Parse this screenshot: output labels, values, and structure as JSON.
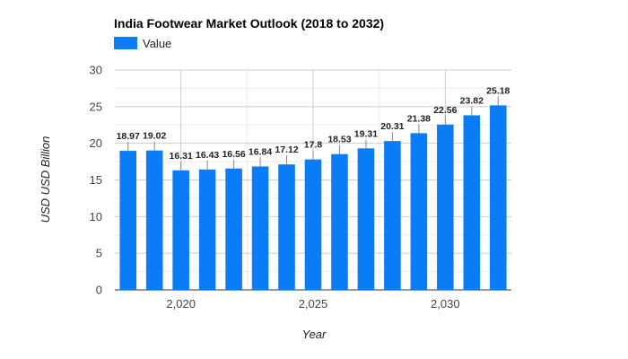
{
  "chart_data": {
    "type": "bar",
    "title": "India Footwear Market Outlook (2018 to 2032)",
    "legend": {
      "entries": [
        "Value"
      ],
      "position": "top-left"
    },
    "xlabel": "Year",
    "ylabel": "USD USD Billion",
    "x": [
      2018,
      2019,
      2020,
      2021,
      2022,
      2023,
      2024,
      2025,
      2026,
      2027,
      2028,
      2029,
      2030,
      2031,
      2032
    ],
    "series": [
      {
        "name": "Value",
        "values": [
          18.97,
          19.02,
          16.31,
          16.43,
          16.56,
          16.84,
          17.12,
          17.8,
          18.53,
          19.31,
          20.31,
          21.38,
          22.56,
          23.82,
          25.18
        ],
        "labels": [
          "18.97",
          "19.02",
          "16.31",
          "16.43",
          "16.56",
          "16.84",
          "17.12",
          "17.8",
          "18.53",
          "19.31",
          "20.31",
          "21.38",
          "22.56",
          "23.82",
          "25.18"
        ]
      }
    ],
    "ylim": [
      0,
      30
    ],
    "yticks": [
      0,
      5,
      10,
      15,
      20,
      25,
      30
    ],
    "xticks": [
      2020,
      2025,
      2030
    ],
    "xtick_labels": [
      "2,020",
      "2,025",
      "2,030"
    ],
    "grid": true,
    "colors": {
      "bar": "#0a7cf5",
      "grid_major": "#cccccc",
      "grid_minor": "#ebebeb"
    }
  }
}
